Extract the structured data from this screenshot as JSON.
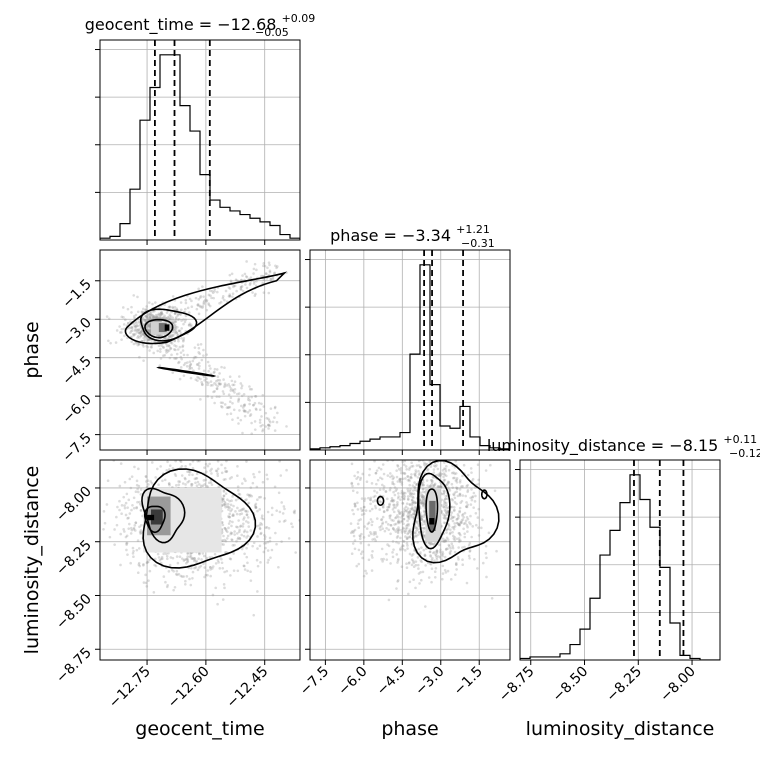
{
  "chart_data": {
    "type": "corner",
    "parameters": [
      {
        "name": "geocent_time",
        "median": "−12.68",
        "plus": "+0.09",
        "minus": "−0.05"
      },
      {
        "name": "phase",
        "median": "−3.34",
        "plus": "+1.21",
        "minus": "−0.31"
      },
      {
        "name": "luminosity_distance",
        "median": "−8.15",
        "plus": "+0.11",
        "minus": "−0.12"
      }
    ],
    "ranges": {
      "geocent_time": [
        -12.87,
        -12.36
      ],
      "phase": [
        -8.1,
        -0.3
      ],
      "luminosity_distance": [
        -8.8,
        -7.87
      ]
    },
    "ticks": {
      "geocent_time": [
        {
          "v": -12.75,
          "label": "−12.75"
        },
        {
          "v": -12.6,
          "label": "−12.60"
        },
        {
          "v": -12.45,
          "label": "−12.45"
        }
      ],
      "phase": [
        {
          "v": -7.5,
          "label": "−7.5"
        },
        {
          "v": -6.0,
          "label": "−6.0"
        },
        {
          "v": -4.5,
          "label": "−4.5"
        },
        {
          "v": -3.0,
          "label": "−3.0"
        },
        {
          "v": -1.5,
          "label": "−1.5"
        }
      ],
      "luminosity_distance": [
        {
          "v": -8.75,
          "label": "−8.75"
        },
        {
          "v": -8.5,
          "label": "−8.50"
        },
        {
          "v": -8.25,
          "label": "−8.25"
        },
        {
          "v": -8.0,
          "label": "−8.00"
        }
      ]
    },
    "quantiles": {
      "geocent_time": [
        -12.73,
        -12.68,
        -12.59
      ],
      "phase": [
        -3.65,
        -3.34,
        -2.13
      ],
      "luminosity_distance": [
        -8.27,
        -8.15,
        -8.04
      ]
    },
    "histograms": {
      "geocent_time": {
        "start": -12.87,
        "step": 0.0255,
        "counts": [
          0.5,
          1,
          4.5,
          14,
          33,
          42,
          51,
          51,
          37,
          30,
          18,
          11,
          9,
          8,
          7,
          6,
          5,
          4,
          1.5,
          0.5
        ]
      },
      "phase": {
        "start": -8.1,
        "step": 0.39,
        "counts": [
          0.5,
          1,
          1.5,
          2,
          3,
          4,
          5,
          6,
          6,
          8,
          44,
          85,
          30,
          11,
          10,
          20,
          6,
          2,
          1,
          0.5
        ]
      },
      "luminosity_distance": {
        "start": -8.8,
        "step": 0.0465,
        "counts": [
          0.5,
          1,
          1,
          1,
          2,
          5,
          10,
          20,
          34,
          42,
          51,
          60,
          52,
          43,
          30,
          12,
          1.5,
          0.5,
          0,
          0
        ]
      }
    },
    "grid": true,
    "grid_color": "#b0b0b0",
    "scatter_color": "#9a9a9a"
  }
}
